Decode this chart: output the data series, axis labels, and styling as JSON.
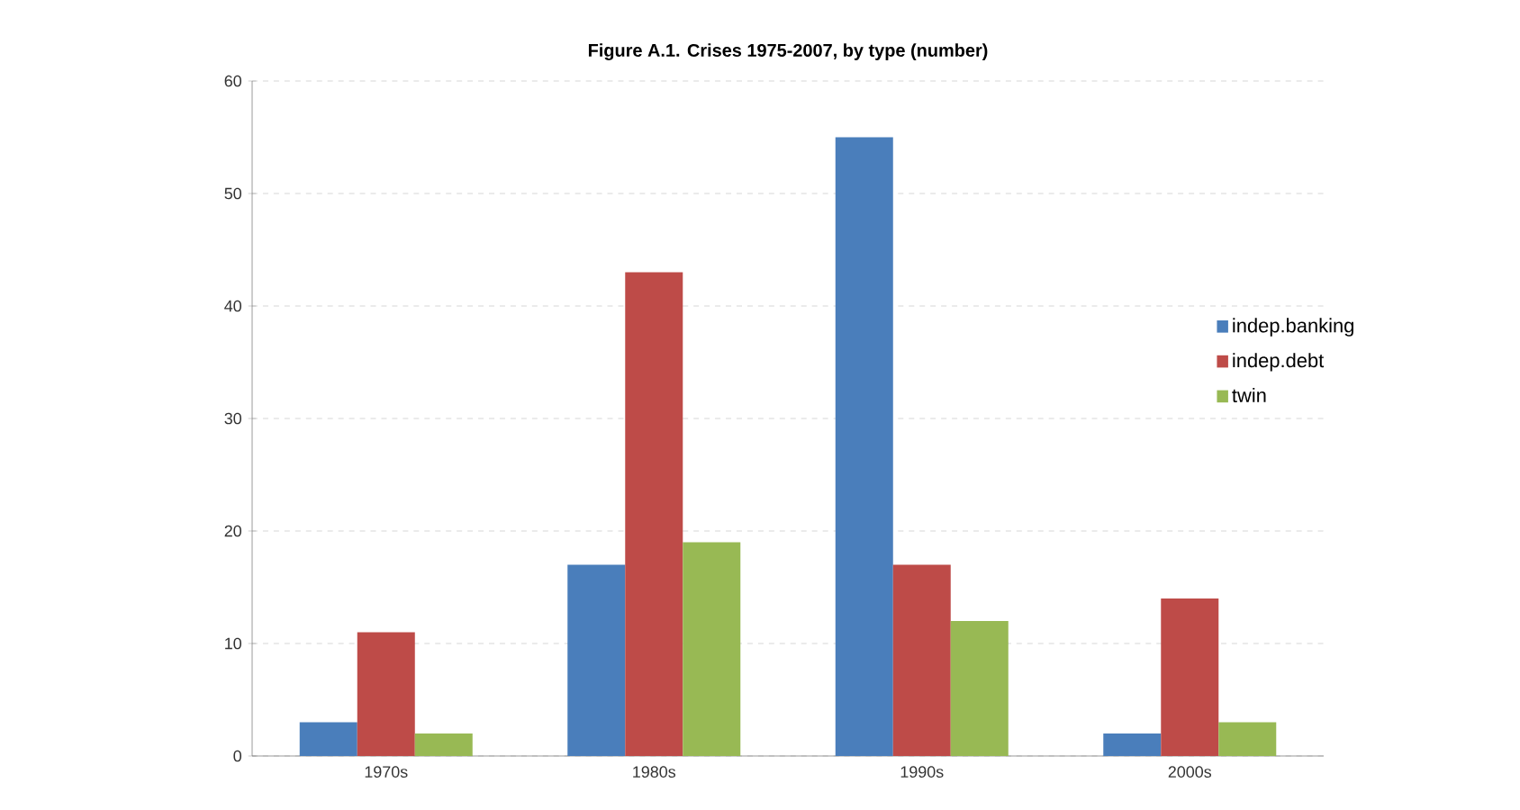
{
  "chart_data": {
    "type": "bar",
    "title": "Figure A.1. Crises 1975-2007, by type (number)",
    "categories": [
      "1970s",
      "1980s",
      "1990s",
      "2000s"
    ],
    "series": [
      {
        "name": "indep.banking",
        "color": "#4a7ebb",
        "values": [
          3,
          17,
          55,
          2
        ]
      },
      {
        "name": "indep.debt",
        "color": "#be4b48",
        "values": [
          11,
          43,
          17,
          14
        ]
      },
      {
        "name": "twin",
        "color": "#98b954",
        "values": [
          2,
          19,
          12,
          3
        ]
      }
    ],
    "ylim": [
      0,
      60
    ],
    "yticks": [
      0,
      10,
      20,
      30,
      40,
      50,
      60
    ],
    "grid": "y",
    "legend": "right"
  }
}
